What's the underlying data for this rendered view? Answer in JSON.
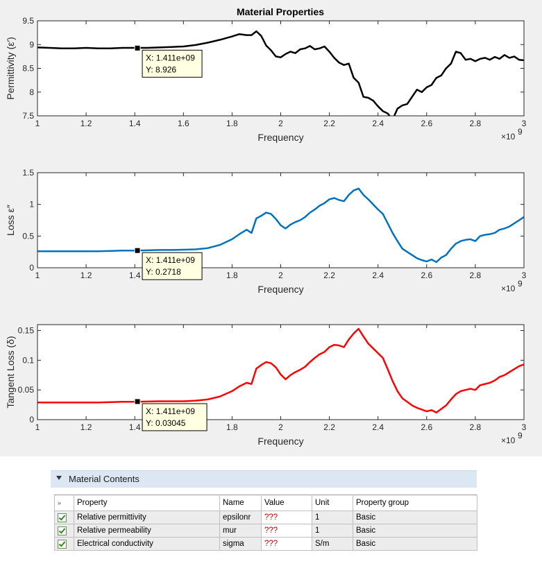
{
  "figure_title": "Material Properties",
  "chart_data": [
    {
      "type": "line",
      "color": "#000000",
      "ylabel": "Permittivity (ε′)",
      "xlabel": "Frequency",
      "x_exponent_label": "×10",
      "x_exponent": "9",
      "xlim": [
        1,
        3
      ],
      "ylim": [
        7.5,
        9.5
      ],
      "x_tick_labels": [
        "1",
        "1.2",
        "1.4",
        "1.6",
        "1.8",
        "2",
        "2.2",
        "2.4",
        "2.6",
        "2.8",
        "3"
      ],
      "y_ticks": [
        7.5,
        8,
        8.5,
        9,
        9.5
      ],
      "y_tick_labels": [
        "7.5",
        "8",
        "8.5",
        "9",
        "9.5"
      ],
      "datatip": {
        "x": 1.411,
        "y": 8.926,
        "x_label": "X: 1.411e+09",
        "y_label": "Y: 8.926"
      },
      "series": [
        {
          "name": "Permittivity",
          "x": [
            1,
            1.05,
            1.1,
            1.15,
            1.2,
            1.25,
            1.3,
            1.35,
            1.4,
            1.45,
            1.5,
            1.55,
            1.6,
            1.65,
            1.7,
            1.75,
            1.8,
            1.83,
            1.86,
            1.88,
            1.9,
            1.92,
            1.94,
            1.96,
            1.98,
            2,
            2.02,
            2.04,
            2.06,
            2.08,
            2.1,
            2.12,
            2.14,
            2.16,
            2.18,
            2.2,
            2.22,
            2.24,
            2.26,
            2.28,
            2.3,
            2.32,
            2.34,
            2.36,
            2.38,
            2.4,
            2.42,
            2.44,
            2.46,
            2.48,
            2.5,
            2.52,
            2.54,
            2.56,
            2.58,
            2.6,
            2.62,
            2.64,
            2.66,
            2.68,
            2.7,
            2.72,
            2.74,
            2.76,
            2.78,
            2.8,
            2.82,
            2.84,
            2.86,
            2.88,
            2.9,
            2.92,
            2.94,
            2.96,
            2.98,
            3
          ],
          "y": [
            8.94,
            8.93,
            8.92,
            8.92,
            8.93,
            8.92,
            8.92,
            8.93,
            8.93,
            8.93,
            8.94,
            8.95,
            8.96,
            8.99,
            9.04,
            9.1,
            9.17,
            9.22,
            9.2,
            9.2,
            9.28,
            9.18,
            8.98,
            8.88,
            8.75,
            8.73,
            8.8,
            8.85,
            8.82,
            8.9,
            8.92,
            8.97,
            8.9,
            8.92,
            8.96,
            8.85,
            8.72,
            8.62,
            8.57,
            8.6,
            8.3,
            8.2,
            7.9,
            7.88,
            7.82,
            7.7,
            7.6,
            7.55,
            7.42,
            7.65,
            7.72,
            7.75,
            7.9,
            8.05,
            8.0,
            8.1,
            8.15,
            8.3,
            8.35,
            8.5,
            8.6,
            8.85,
            8.82,
            8.68,
            8.7,
            8.65,
            8.7,
            8.72,
            8.68,
            8.74,
            8.7,
            8.78,
            8.72,
            8.75,
            8.68,
            8.67
          ]
        }
      ]
    },
    {
      "type": "line",
      "color": "#0072bd",
      "ylabel": "Loss ε″",
      "xlabel": "Frequency",
      "x_exponent_label": "×10",
      "x_exponent": "9",
      "xlim": [
        1,
        3
      ],
      "ylim": [
        0,
        1.5
      ],
      "x_tick_labels": [
        "1",
        "1.2",
        "1.4",
        "1.6",
        "1.8",
        "2",
        "2.2",
        "2.4",
        "2.6",
        "2.8",
        "3"
      ],
      "y_ticks": [
        0,
        0.5,
        1,
        1.5
      ],
      "y_tick_labels": [
        "0",
        "0.5",
        "1",
        "1.5"
      ],
      "datatip": {
        "x": 1.411,
        "y": 0.2718,
        "x_label": "X: 1.411e+09",
        "y_label": "Y: 0.2718"
      },
      "series": [
        {
          "name": "Loss",
          "x": [
            1,
            1.05,
            1.1,
            1.15,
            1.2,
            1.25,
            1.3,
            1.35,
            1.4,
            1.45,
            1.5,
            1.55,
            1.6,
            1.65,
            1.7,
            1.75,
            1.8,
            1.83,
            1.86,
            1.88,
            1.9,
            1.92,
            1.94,
            1.96,
            1.98,
            2,
            2.02,
            2.04,
            2.06,
            2.08,
            2.1,
            2.12,
            2.14,
            2.16,
            2.18,
            2.2,
            2.22,
            2.24,
            2.26,
            2.28,
            2.3,
            2.32,
            2.34,
            2.36,
            2.38,
            2.4,
            2.42,
            2.44,
            2.46,
            2.48,
            2.5,
            2.52,
            2.54,
            2.56,
            2.58,
            2.6,
            2.62,
            2.64,
            2.66,
            2.68,
            2.7,
            2.72,
            2.74,
            2.76,
            2.78,
            2.8,
            2.82,
            2.84,
            2.86,
            2.88,
            2.9,
            2.92,
            2.94,
            2.96,
            2.98,
            3
          ],
          "y": [
            0.26,
            0.26,
            0.26,
            0.26,
            0.26,
            0.26,
            0.265,
            0.27,
            0.27,
            0.275,
            0.28,
            0.28,
            0.285,
            0.29,
            0.31,
            0.36,
            0.45,
            0.53,
            0.6,
            0.55,
            0.78,
            0.82,
            0.87,
            0.85,
            0.77,
            0.67,
            0.62,
            0.68,
            0.72,
            0.75,
            0.8,
            0.87,
            0.92,
            0.98,
            1.02,
            1.08,
            1.1,
            1.07,
            1.05,
            1.15,
            1.22,
            1.25,
            1.15,
            1.08,
            1.0,
            0.92,
            0.85,
            0.7,
            0.55,
            0.42,
            0.3,
            0.25,
            0.2,
            0.15,
            0.12,
            0.1,
            0.13,
            0.09,
            0.16,
            0.2,
            0.3,
            0.38,
            0.42,
            0.44,
            0.45,
            0.42,
            0.5,
            0.52,
            0.53,
            0.55,
            0.6,
            0.62,
            0.65,
            0.7,
            0.75,
            0.8
          ]
        }
      ]
    },
    {
      "type": "line",
      "color": "#ff0000",
      "ylabel": "Tangent Loss (δ)",
      "xlabel": "Frequency",
      "x_exponent_label": "×10",
      "x_exponent": "9",
      "xlim": [
        1,
        3
      ],
      "ylim": [
        0,
        0.16
      ],
      "x_tick_labels": [
        "1",
        "1.2",
        "1.4",
        "1.6",
        "1.8",
        "2",
        "2.2",
        "2.4",
        "2.6",
        "2.8",
        "3"
      ],
      "y_ticks": [
        0,
        0.05,
        0.1,
        0.15
      ],
      "y_tick_labels": [
        "0",
        "0.05",
        "0.1",
        "0.15"
      ],
      "datatip": {
        "x": 1.411,
        "y": 0.03045,
        "x_label": "X: 1.411e+09",
        "y_label": "Y: 0.03045"
      },
      "series": [
        {
          "name": "Tangent Loss",
          "x": [
            1,
            1.05,
            1.1,
            1.15,
            1.2,
            1.25,
            1.3,
            1.35,
            1.4,
            1.45,
            1.5,
            1.55,
            1.6,
            1.65,
            1.7,
            1.75,
            1.8,
            1.83,
            1.86,
            1.88,
            1.9,
            1.92,
            1.94,
            1.96,
            1.98,
            2,
            2.02,
            2.04,
            2.06,
            2.08,
            2.1,
            2.12,
            2.14,
            2.16,
            2.18,
            2.2,
            2.22,
            2.24,
            2.26,
            2.28,
            2.3,
            2.32,
            2.34,
            2.36,
            2.38,
            2.4,
            2.42,
            2.44,
            2.46,
            2.48,
            2.5,
            2.52,
            2.54,
            2.56,
            2.58,
            2.6,
            2.62,
            2.64,
            2.66,
            2.68,
            2.7,
            2.72,
            2.74,
            2.76,
            2.78,
            2.8,
            2.82,
            2.84,
            2.86,
            2.88,
            2.9,
            2.92,
            2.94,
            2.96,
            2.98,
            3
          ],
          "y": [
            0.029,
            0.029,
            0.029,
            0.029,
            0.029,
            0.029,
            0.0295,
            0.03,
            0.03,
            0.0305,
            0.031,
            0.031,
            0.031,
            0.032,
            0.034,
            0.039,
            0.048,
            0.056,
            0.062,
            0.06,
            0.086,
            0.092,
            0.097,
            0.095,
            0.088,
            0.076,
            0.068,
            0.075,
            0.08,
            0.084,
            0.089,
            0.097,
            0.104,
            0.11,
            0.114,
            0.122,
            0.126,
            0.125,
            0.122,
            0.135,
            0.145,
            0.153,
            0.14,
            0.128,
            0.12,
            0.112,
            0.104,
            0.085,
            0.065,
            0.048,
            0.036,
            0.03,
            0.024,
            0.02,
            0.017,
            0.014,
            0.016,
            0.012,
            0.018,
            0.024,
            0.034,
            0.043,
            0.048,
            0.05,
            0.052,
            0.05,
            0.058,
            0.06,
            0.062,
            0.066,
            0.072,
            0.075,
            0.08,
            0.085,
            0.09,
            0.093
          ]
        }
      ]
    }
  ],
  "section": {
    "title": "Material Contents"
  },
  "table": {
    "corner_icon": "»",
    "columns": [
      "Property",
      "Name",
      "Value",
      "Unit",
      "Property group"
    ],
    "rows": [
      {
        "property": "Relative permittivity",
        "name": "epsilonr",
        "value": "???",
        "unit": "1",
        "group": "Basic"
      },
      {
        "property": "Relative permeability",
        "name": "mur",
        "value": "???",
        "unit": "1",
        "group": "Basic"
      },
      {
        "property": "Electrical conductivity",
        "name": "sigma",
        "value": "???",
        "unit": "S/m",
        "group": "Basic"
      }
    ]
  }
}
